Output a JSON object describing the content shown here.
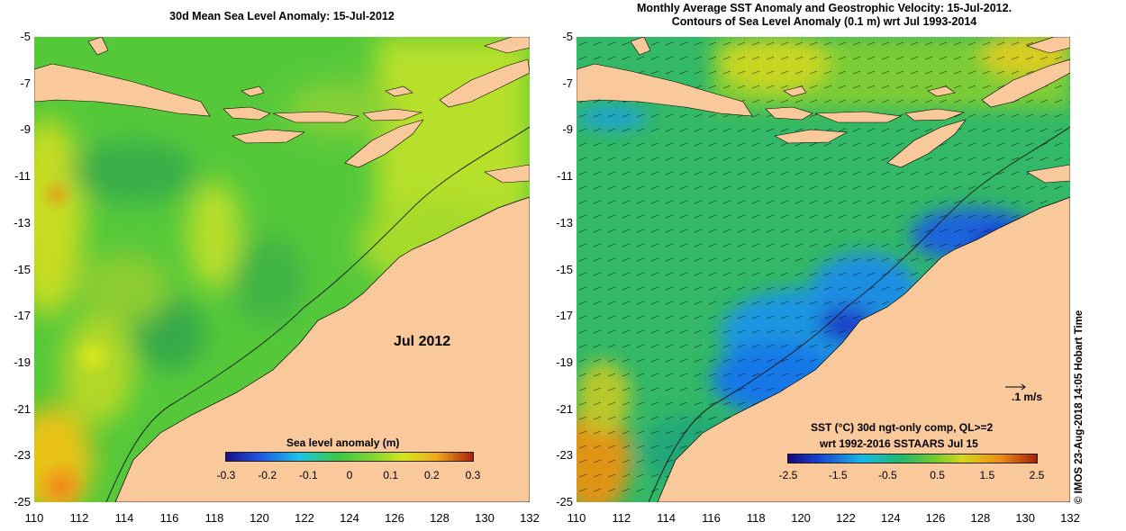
{
  "left_panel": {
    "title": "30d Mean Sea Level Anomaly: 15-Jul-2012",
    "date_label": "Jul 2012",
    "colorbar": {
      "title": "Sea level anomaly (m)",
      "ticks": [
        "-0.3",
        "-0.2",
        "-0.1",
        "0",
        "0.1",
        "0.2",
        "0.3"
      ]
    }
  },
  "right_panel": {
    "title_line1": "Monthly Average SST Anomaly  and Geostrophic Velocity: 15-Jul-2012.",
    "title_line2": "Contours of Sea Level Anomaly (0.1 m) wrt Jul 1993-2014",
    "scale_label": ".1 m/s",
    "legend_line1": "SST (°C) 30d ngt-only comp, QL>=2",
    "legend_line2": "wrt 1992-2016 SSTAARS Jul 15",
    "colorbar": {
      "ticks": [
        "-2.5",
        "-1.5",
        "-0.5",
        "0.5",
        "1.5",
        "2.5"
      ]
    }
  },
  "axes": {
    "lat_ticks": [
      "-5",
      "-7",
      "-9",
      "-11",
      "-13",
      "-15",
      "-17",
      "-19",
      "-21",
      "-23",
      "-25"
    ],
    "lon_ticks": [
      "110",
      "112",
      "114",
      "116",
      "118",
      "120",
      "122",
      "124",
      "126",
      "128",
      "130",
      "132"
    ]
  },
  "credit": "© IMOS 23-Aug-2018 14:05 Hobart Time",
  "colors": {
    "land": "#f9c89b",
    "sla_base": "#4fc832",
    "sst_base": "#2fb86a",
    "cold": "#1e5fe0"
  }
}
